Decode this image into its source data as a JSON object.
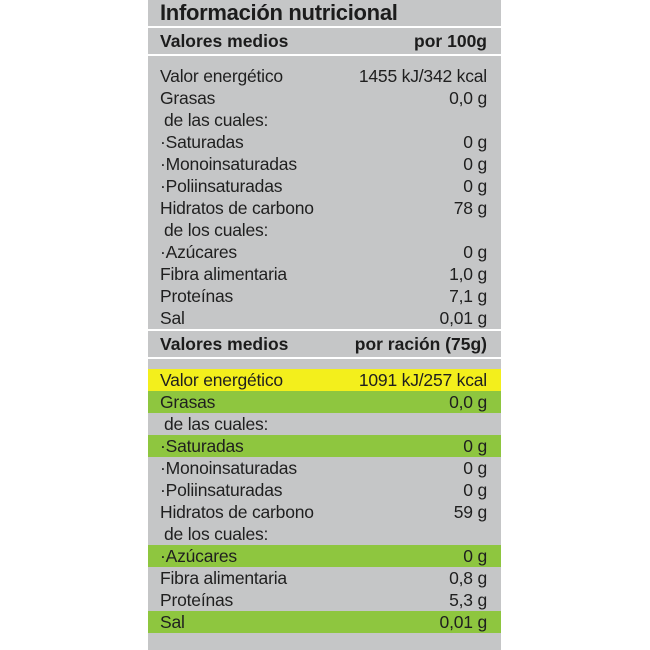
{
  "title": "Información nutricional",
  "per100": {
    "header_label": "Valores medios",
    "header_value": "por 100g",
    "rows": [
      {
        "label": "Valor energético",
        "value": "1455 kJ/342 kcal"
      },
      {
        "label": "Grasas",
        "value": "0,0 g"
      },
      {
        "label": "de las cuales:",
        "value": ""
      },
      {
        "label": "·Saturadas",
        "value": "0 g"
      },
      {
        "label": "·Monoinsaturadas",
        "value": "0 g"
      },
      {
        "label": "·Poliinsaturadas",
        "value": "0 g"
      },
      {
        "label": "Hidratos de carbono",
        "value": "78 g"
      },
      {
        "label": "de los cuales:",
        "value": ""
      },
      {
        "label": "·Azúcares",
        "value": "0 g"
      },
      {
        "label": "Fibra alimentaria",
        "value": "1,0 g"
      },
      {
        "label": "Proteínas",
        "value": "7,1 g"
      },
      {
        "label": "Sal",
        "value": "0,01 g"
      }
    ]
  },
  "perServing": {
    "header_label": "Valores medios",
    "header_value": "por ración (75g)",
    "rows": [
      {
        "label": "Valor energético",
        "value": "1091 kJ/257 kcal",
        "highlight": "yellow"
      },
      {
        "label": "Grasas",
        "value": "0,0 g",
        "highlight": "green"
      },
      {
        "label": "de las cuales:",
        "value": ""
      },
      {
        "label": "·Saturadas",
        "value": "0 g",
        "highlight": "green"
      },
      {
        "label": "·Monoinsaturadas",
        "value": "0 g"
      },
      {
        "label": "·Poliinsaturadas",
        "value": "0 g"
      },
      {
        "label": "Hidratos de carbono",
        "value": "59 g"
      },
      {
        "label": "de los cuales:",
        "value": ""
      },
      {
        "label": "·Azúcares",
        "value": "0 g",
        "highlight": "green"
      },
      {
        "label": "Fibra alimentaria",
        "value": "0,8 g"
      },
      {
        "label": "Proteínas",
        "value": "5,3 g"
      },
      {
        "label": "Sal",
        "value": "0,01 g",
        "highlight": "green"
      }
    ]
  },
  "colors": {
    "panel": "#c5c6c7",
    "yellow_highlight": "#f3ef1c",
    "green_highlight": "#8ec63f",
    "divider": "#ffffff",
    "text": "#1c1c1c"
  }
}
